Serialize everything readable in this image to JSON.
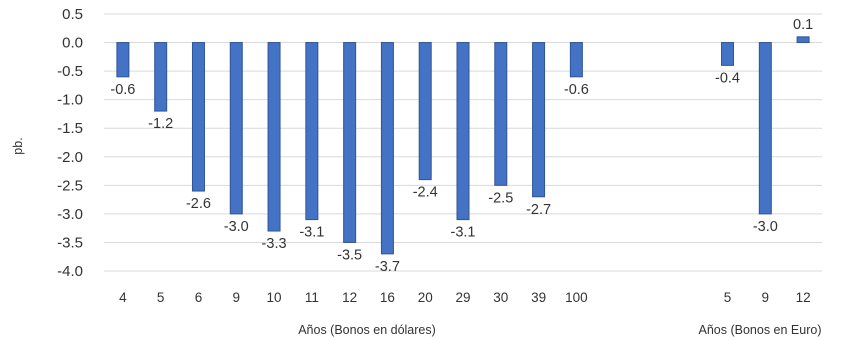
{
  "chart_data": {
    "type": "bar",
    "ylabel": "pb.",
    "ylim": [
      -4.0,
      0.5
    ],
    "yticks": [
      "0.5",
      "0.0",
      "-0.5",
      "-1.0",
      "-1.5",
      "-2.0",
      "-2.5",
      "-3.0",
      "-3.5",
      "-4.0"
    ],
    "grid": true,
    "legend": "none",
    "groups": [
      {
        "xlabel": "Años (Bonos en dólares)",
        "categories": [
          "4",
          "5",
          "6",
          "9",
          "10",
          "11",
          "12",
          "16",
          "20",
          "29",
          "30",
          "39",
          "100"
        ],
        "values": [
          -0.6,
          -1.2,
          -2.6,
          -3.0,
          -3.3,
          -3.1,
          -3.5,
          -3.7,
          -2.4,
          -3.1,
          -2.5,
          -2.7,
          -0.6
        ],
        "labels": [
          "-0.6",
          "-1.2",
          "-2.6",
          "-3.0",
          "-3.3",
          "-3.1",
          "-3.5",
          "-3.7",
          "-2.4",
          "-3.1",
          "-2.5",
          "-2.7",
          "-0.6"
        ]
      },
      {
        "xlabel": "Años (Bonos en Euro)",
        "categories": [
          "5",
          "9",
          "12"
        ],
        "values": [
          -0.4,
          -3.0,
          0.1
        ],
        "labels": [
          "-0.4",
          "-3.0",
          "0.1"
        ]
      }
    ],
    "colors": {
      "bar": "#4472c4",
      "bar_edge": "#2f5597"
    }
  }
}
